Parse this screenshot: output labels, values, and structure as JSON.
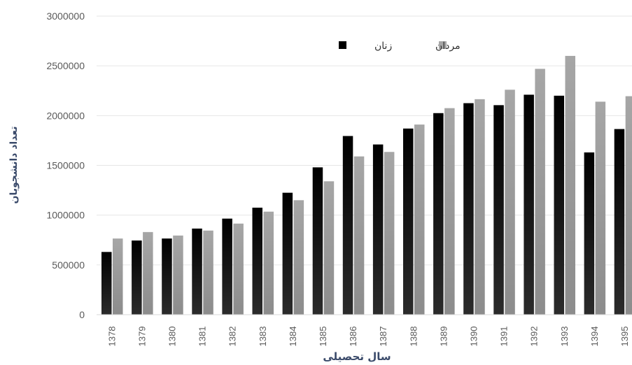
{
  "chart_data": {
    "type": "bar",
    "title": "",
    "xlabel": "سال تحصیلی",
    "ylabel": "تعداد دانشجویان",
    "ylim": [
      0,
      3000000
    ],
    "y_ticks": [
      "0",
      "500000",
      "1000000",
      "1500000",
      "2000000",
      "2500000",
      "3000000"
    ],
    "grid": true,
    "legend_position": "top-center",
    "categories": [
      "1378",
      "1379",
      "1380",
      "1381",
      "1382",
      "1383",
      "1384",
      "1385",
      "1386",
      "1387",
      "1388",
      "1389",
      "1390",
      "1391",
      "1392",
      "1393",
      "1394",
      "1395"
    ],
    "series": [
      {
        "name": "زنان",
        "color": "#000000",
        "values": [
          630000,
          745000,
          765000,
          865000,
          965000,
          1075000,
          1225000,
          1480000,
          1795000,
          1710000,
          1870000,
          2025000,
          2125000,
          2105000,
          2210000,
          2200000,
          1630000,
          1865000
        ]
      },
      {
        "name": "مردان",
        "color": "#a6a6a6",
        "values": [
          765000,
          830000,
          795000,
          845000,
          915000,
          1035000,
          1150000,
          1340000,
          1590000,
          1635000,
          1910000,
          2075000,
          2165000,
          2260000,
          2470000,
          2600000,
          2140000,
          2195000
        ]
      }
    ]
  }
}
